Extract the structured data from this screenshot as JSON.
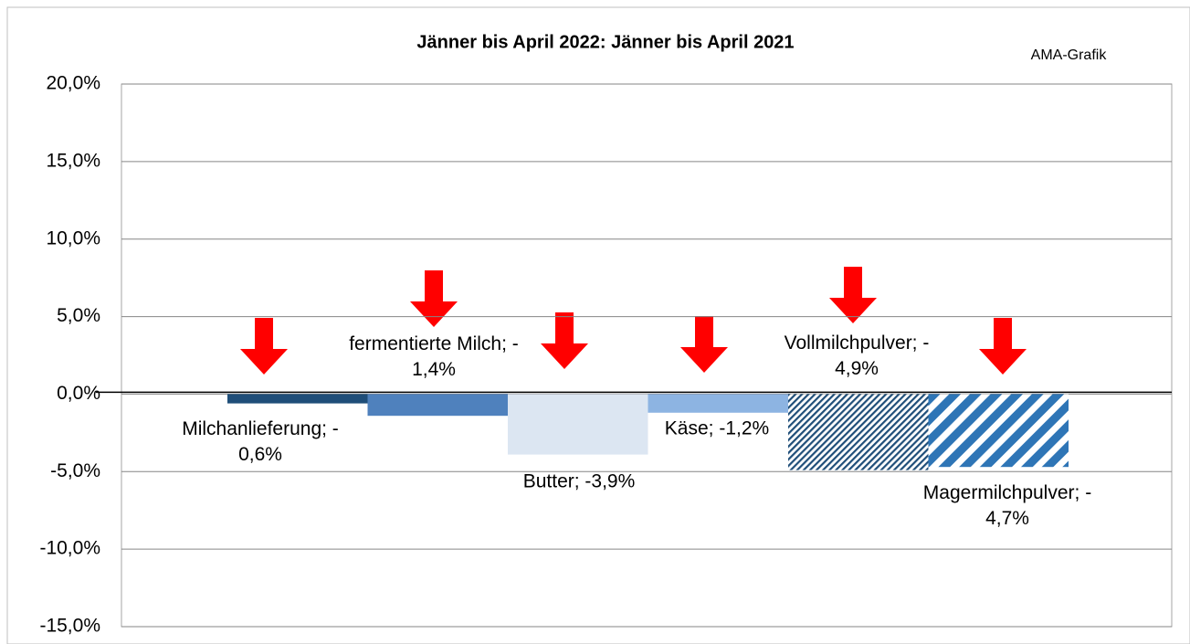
{
  "chart_data": {
    "type": "bar",
    "title": "Jänner bis April 2022: Jänner bis April 2021",
    "source": "AMA-Grafik",
    "categories": [
      "Milchanlieferung",
      "fermentierte Milch",
      "Butter",
      "Käse",
      "Vollmilchpulver",
      "Magermilchpulver"
    ],
    "values": [
      -0.6,
      -1.4,
      -3.9,
      -1.2,
      -4.9,
      -4.7
    ],
    "value_labels": [
      "Milchanlieferung; -\n0,6%",
      "fermentierte Milch; -\n1,4%",
      "Butter; -3,9%",
      "Käse; -1,2%",
      "Vollmilchpulver; -\n4,9%",
      "Magermilchpulver; -\n4,7%"
    ],
    "colors": [
      "#1f4e79",
      "#4f81bd",
      "#dce6f2",
      "#8db4e2",
      "#1f4e79",
      "#2e75b6"
    ],
    "hatch": [
      "none",
      "none",
      "none",
      "none",
      "fine",
      "wide"
    ],
    "ylim": [
      -15,
      20
    ],
    "yticks": [
      {
        "value": -15,
        "label": "-15,0%"
      },
      {
        "value": -10,
        "label": "-10,0%"
      },
      {
        "value": -5,
        "label": "-5,0%"
      },
      {
        "value": 0,
        "label": "0,0%"
      },
      {
        "value": 5,
        "label": "5,0%"
      },
      {
        "value": 10,
        "label": "10,0%"
      },
      {
        "value": 15,
        "label": "15,0%"
      },
      {
        "value": 20,
        "label": "20,0%"
      }
    ],
    "grid": true
  }
}
